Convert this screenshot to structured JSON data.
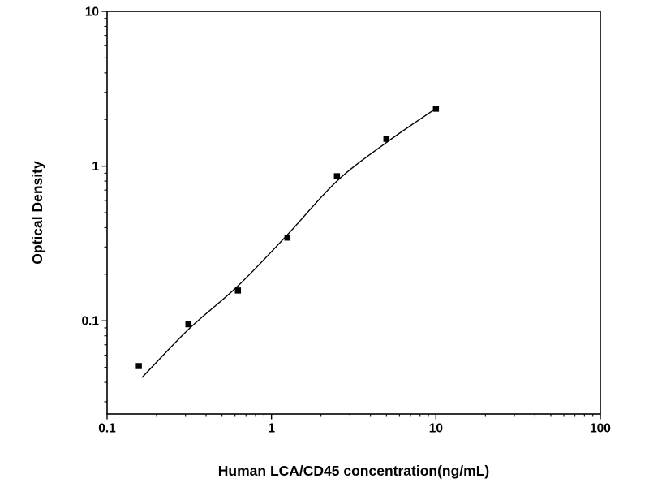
{
  "chart_data": {
    "type": "scatter",
    "title": "",
    "xlabel": "Human LCA/CD45 concentration(ng/mL)",
    "ylabel": "Optical Density",
    "x_scale": "log",
    "y_scale": "log",
    "xlim": [
      0.1,
      100
    ],
    "ylim": [
      0.025,
      10
    ],
    "grid": false,
    "legend": "none",
    "marker": "filled-square",
    "marker_size": 7.5,
    "colors": {
      "background": "#ffffff",
      "frame": "#000000",
      "curve": "#000000",
      "marker": "#000000",
      "text": "#000000"
    },
    "x_ticks": [
      {
        "value": 0.1,
        "label": "0.1"
      },
      {
        "value": 1,
        "label": "1"
      },
      {
        "value": 10,
        "label": "10"
      },
      {
        "value": 100,
        "label": "100"
      }
    ],
    "y_ticks": [
      {
        "value": 0.1,
        "label": "0.1"
      },
      {
        "value": 1,
        "label": "1"
      },
      {
        "value": 10,
        "label": "10"
      }
    ],
    "series": [
      {
        "name": "standard-data-points",
        "type": "scatter",
        "points": [
          [
            0.156,
            0.051
          ],
          [
            0.3125,
            0.095
          ],
          [
            0.625,
            0.157
          ],
          [
            1.25,
            0.345
          ],
          [
            2.5,
            0.86
          ],
          [
            5,
            1.5
          ],
          [
            10,
            2.35
          ]
        ]
      },
      {
        "name": "fitted-curve",
        "type": "line",
        "points": [
          [
            0.163,
            0.043
          ],
          [
            0.3125,
            0.088
          ],
          [
            0.625,
            0.168
          ],
          [
            1.25,
            0.36
          ],
          [
            2.5,
            0.8
          ],
          [
            5,
            1.42
          ],
          [
            10,
            2.36
          ]
        ]
      }
    ]
  },
  "layout_note": ""
}
